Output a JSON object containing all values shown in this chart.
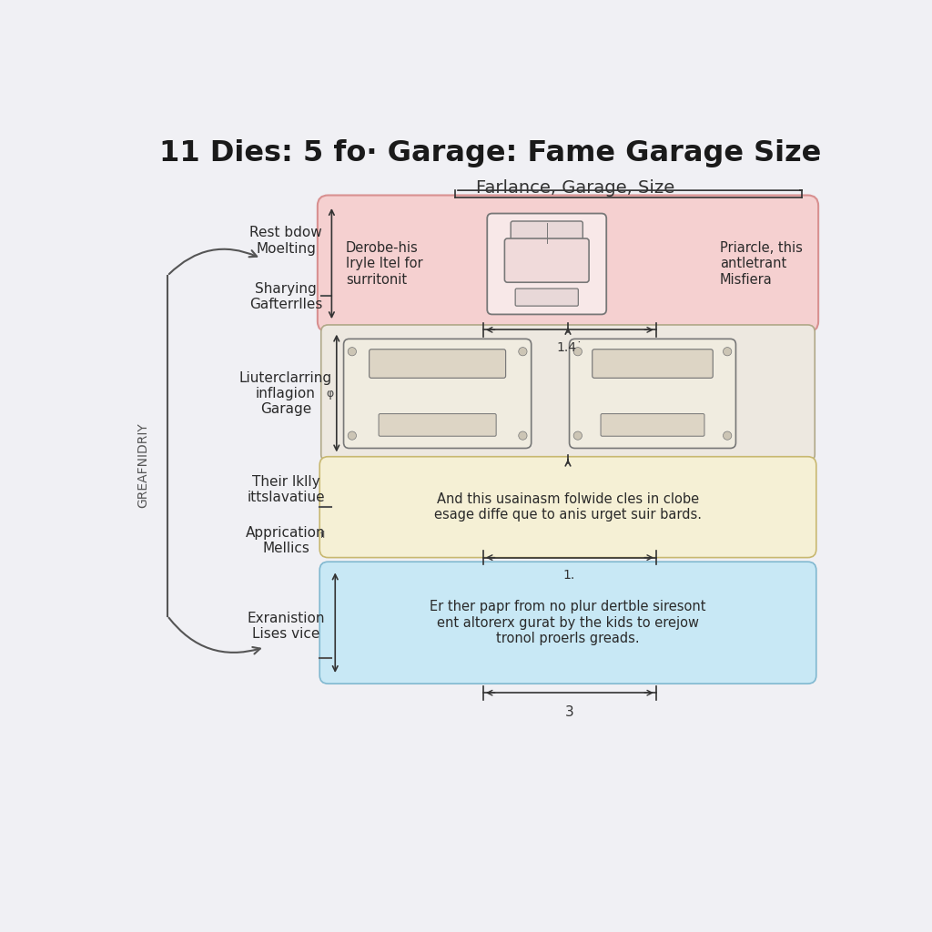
{
  "title": "11 Dies: 5 fo· Garage: Fame Garage Size",
  "subtitle": "Farlance, Garage, Size",
  "bg_color": "#f0f0f4",
  "left_label": "GREAFNIDRIY",
  "box1_color": "#f5d0d0",
  "box1_border": "#d89090",
  "box1_left_text": "Derobe-his\nIryle Itel for\nsurritonit",
  "box1_right_text": "Priarcle, this\nantletrant\nMisfiera",
  "box2_color": "#ede8e0",
  "box2_border": "#b0a888",
  "box3_color": "#f5f0d5",
  "box3_border": "#c8b870",
  "box3_text": "And this usainasm folwide cles in clobe\nesage diffe que to anis urget suir bards.",
  "box4_color": "#c8e8f5",
  "box4_border": "#80b8d0",
  "box4_text": "Er ther papr from no plur dertble siresont\nent altorerx gurat by the kids to erejow\ntronol proerls greads.",
  "label_top": "Rest bdow\nMoelting",
  "label_top2": "Sharying\nGafterrlles",
  "label_mid": "Liuterclarring\ninflagion\nGarage",
  "label_bot1": "Their lklly\nittslavatiue",
  "label_bot2": "Apprication\nMellics",
  "label_bot3": "Exranistion\nLises vice",
  "dim_14": "1.4˙",
  "dim_3": "3",
  "dim_1": "1."
}
